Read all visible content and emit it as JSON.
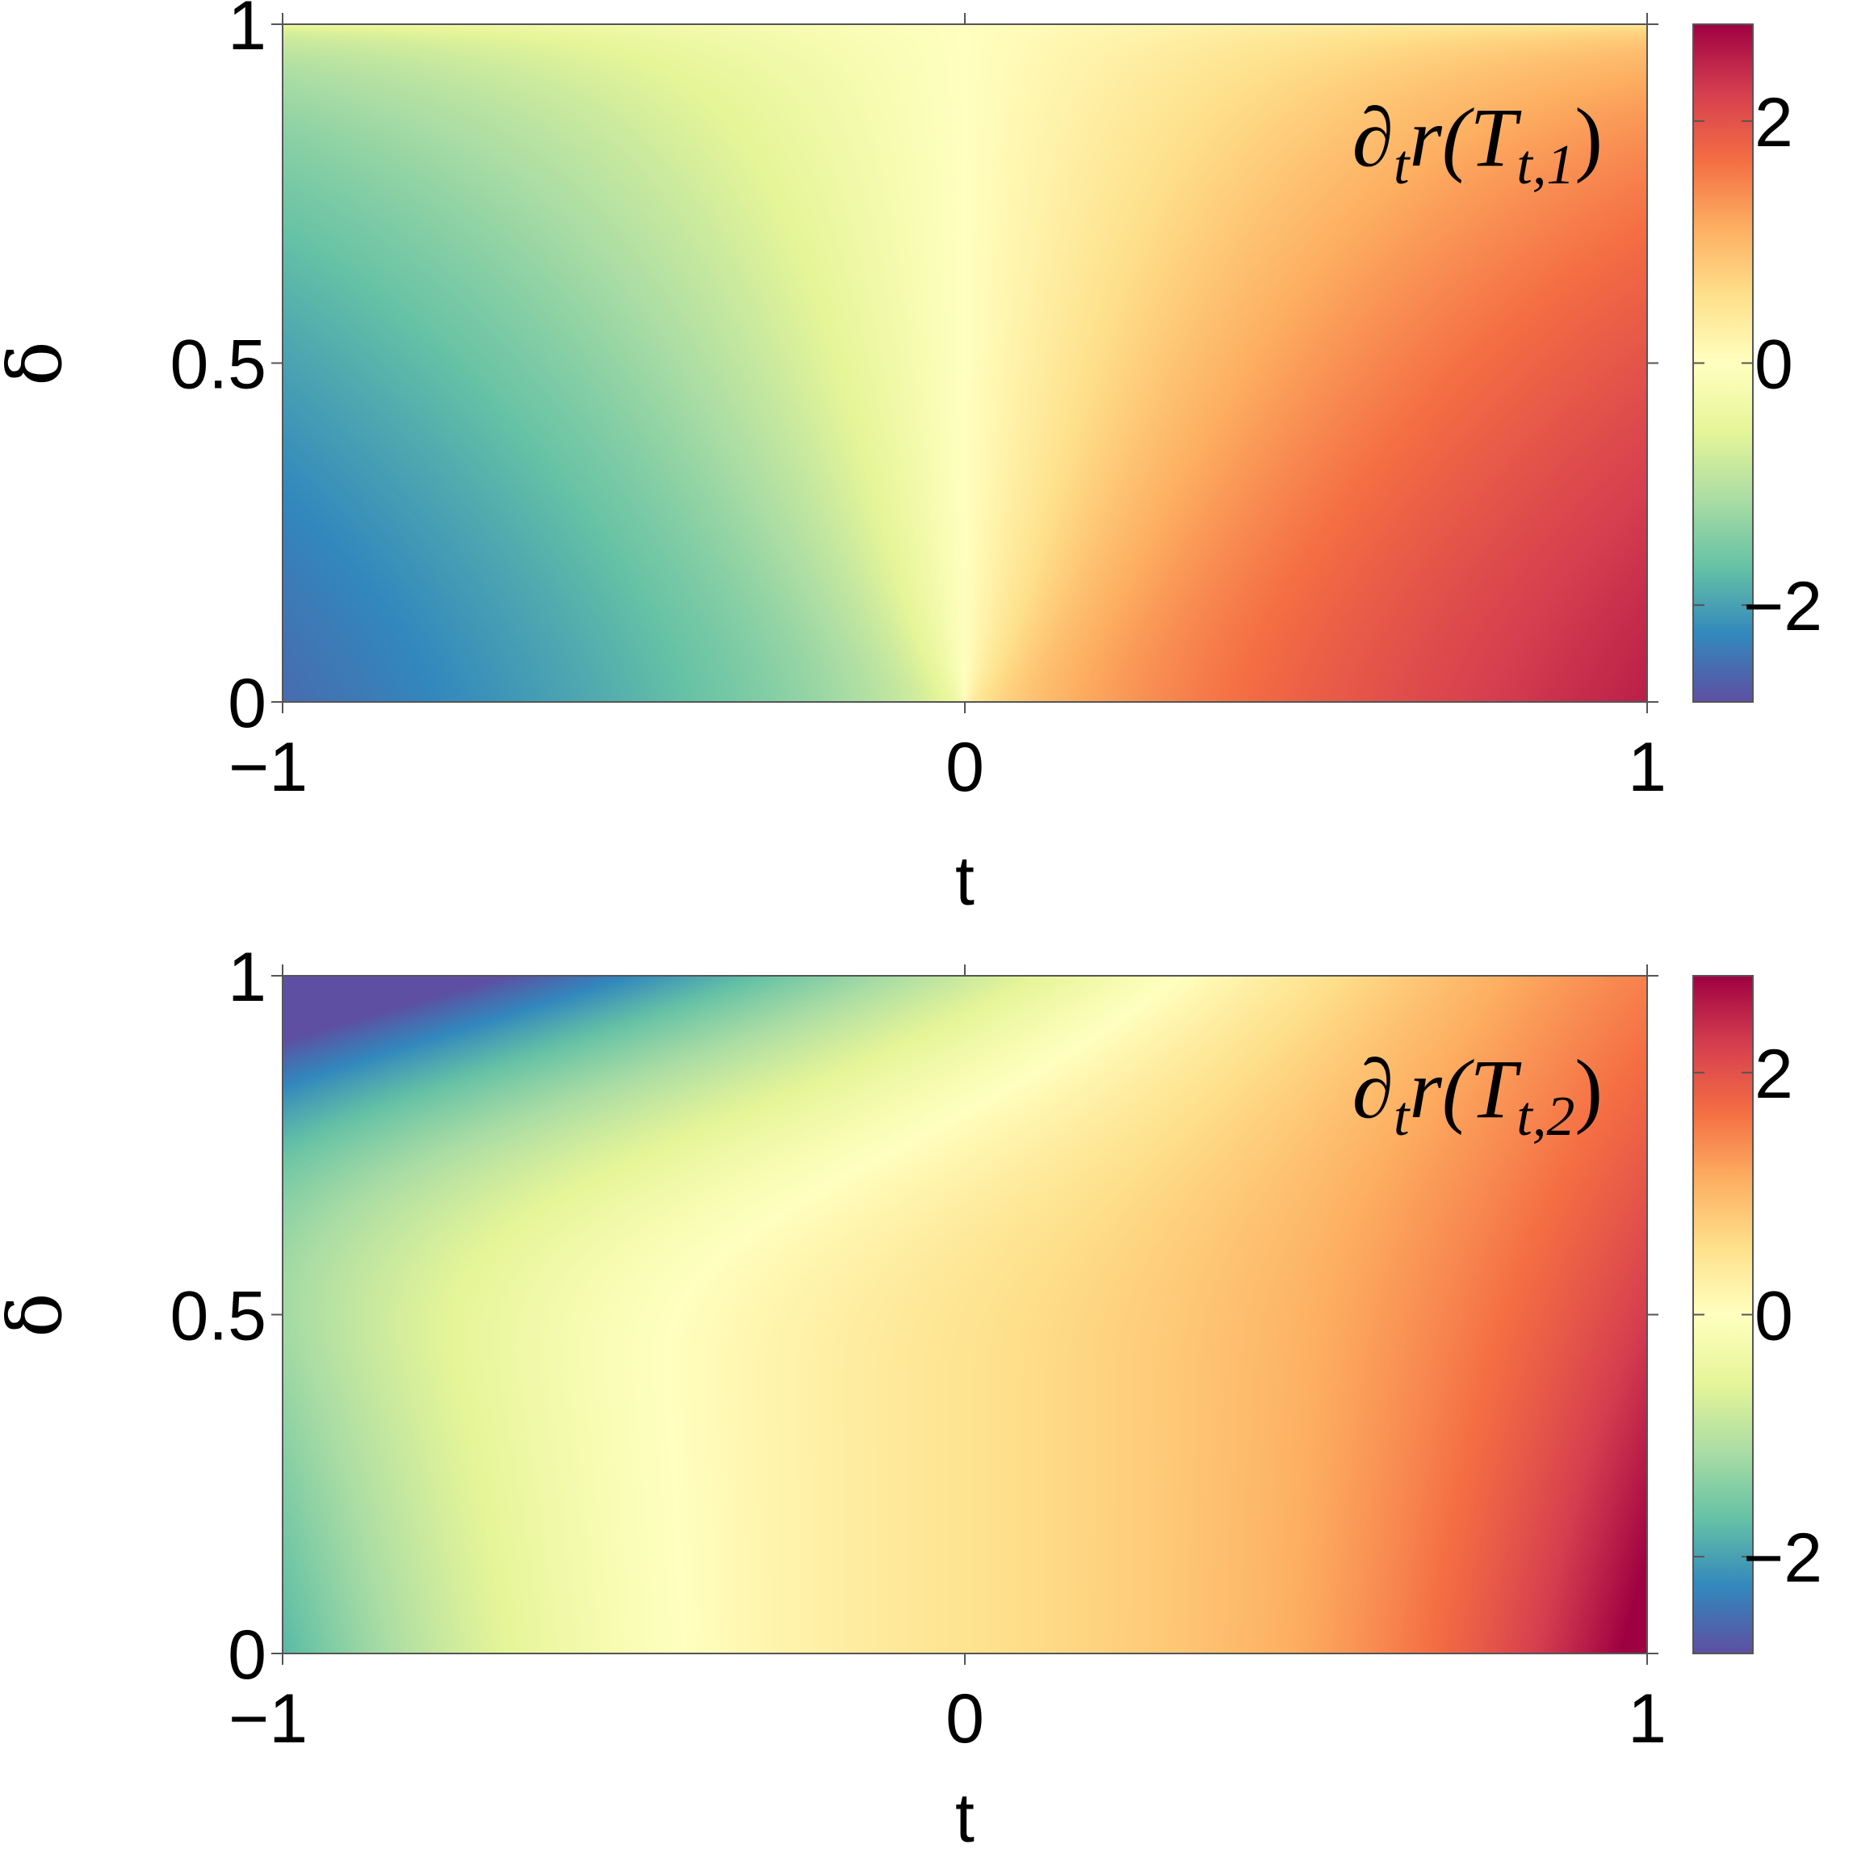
{
  "chart_data": [
    {
      "type": "heatmap",
      "panel": "top",
      "annotation": {
        "text": "∂",
        "sub": "t",
        "func": "r(T",
        "index": "t,1",
        "close": ")"
      },
      "xlabel": "t",
      "ylabel": "δ",
      "xlim": [
        -1,
        1
      ],
      "ylim": [
        0,
        1
      ],
      "x_ticks": [
        -1,
        0,
        1
      ],
      "x_tick_labels": [
        "−1",
        "0",
        "1"
      ],
      "y_ticks": [
        0,
        0.5,
        1
      ],
      "y_tick_labels": [
        "0",
        "0.5",
        "1"
      ],
      "colorbar": {
        "range": [
          -2.8,
          2.8
        ],
        "ticks": [
          -2,
          0,
          2
        ],
        "tick_labels": [
          "−2",
          "0",
          "2"
        ],
        "colormap": "Spectral_r"
      }
    },
    {
      "type": "heatmap",
      "panel": "bottom",
      "annotation": {
        "text": "∂",
        "sub": "t",
        "func": "r(T",
        "index": "t,2",
        "close": ")"
      },
      "xlabel": "t",
      "ylabel": "δ",
      "xlim": [
        -1,
        1
      ],
      "ylim": [
        0,
        1
      ],
      "x_ticks": [
        -1,
        0,
        1
      ],
      "x_tick_labels": [
        "−1",
        "0",
        "1"
      ],
      "y_ticks": [
        0,
        0.5,
        1
      ],
      "y_tick_labels": [
        "0",
        "0.5",
        "1"
      ],
      "colorbar": {
        "range": [
          -2.8,
          2.8
        ],
        "ticks": [
          -2,
          0,
          2
        ],
        "tick_labels": [
          "−2",
          "0",
          "2"
        ],
        "colormap": "Spectral_r"
      }
    }
  ],
  "colors": {
    "colormap_stops": [
      "#5e4fa2",
      "#3288bd",
      "#66c2a5",
      "#abdda4",
      "#e6f598",
      "#ffffbf",
      "#fee08b",
      "#fdae61",
      "#f46d43",
      "#d53e4f",
      "#9e0142"
    ]
  }
}
